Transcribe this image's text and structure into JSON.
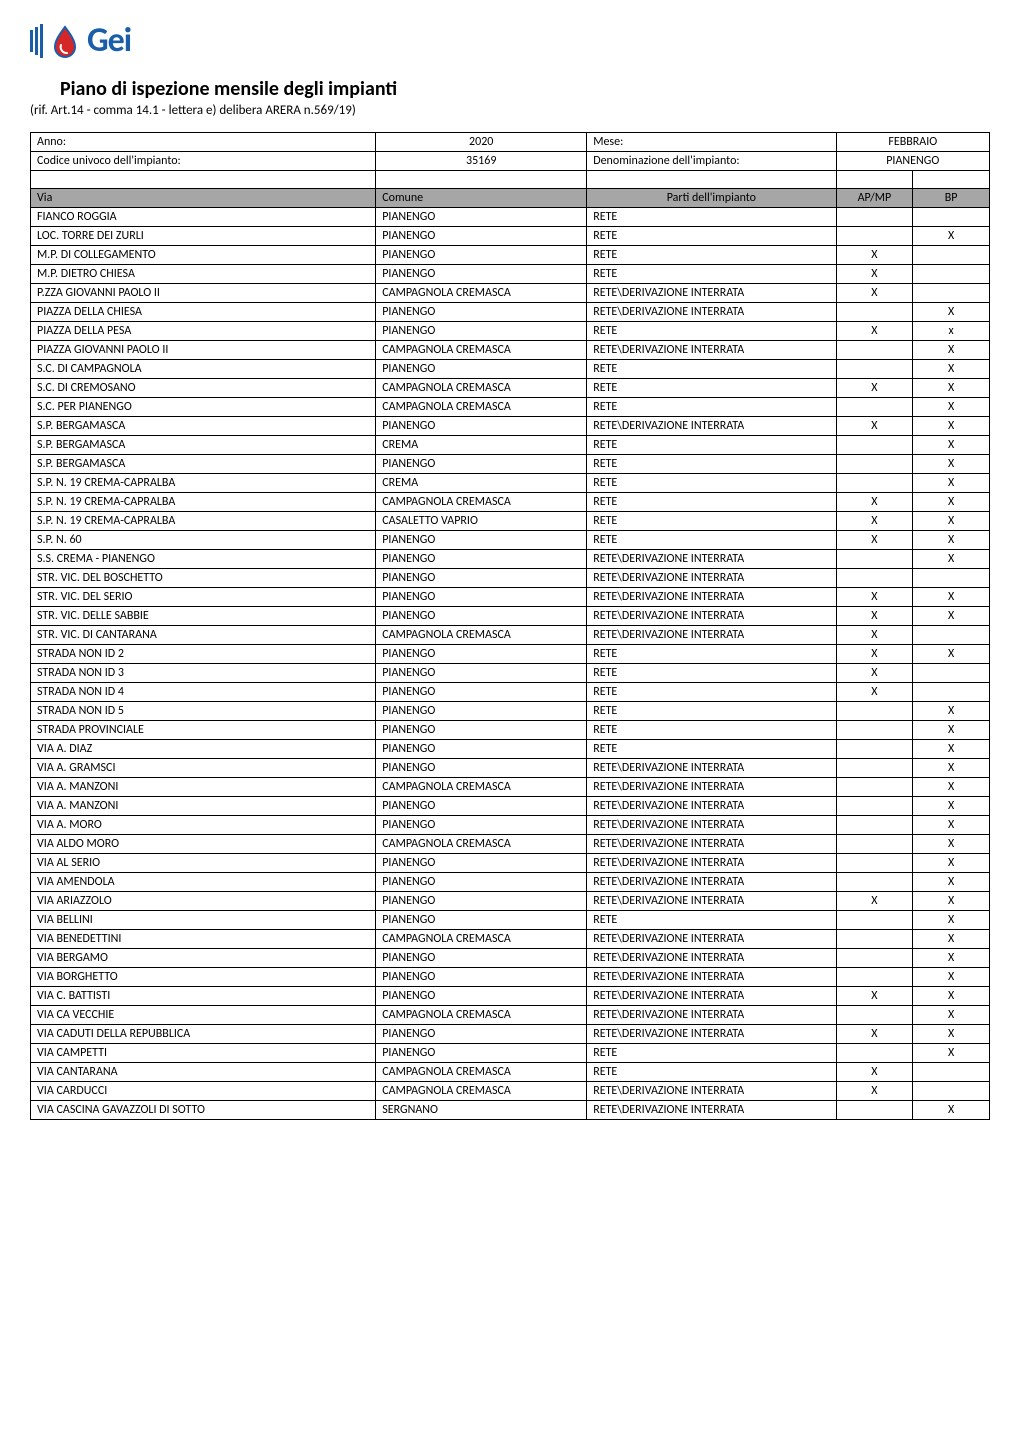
{
  "logo": {
    "text": "Gei",
    "bar_color": "#1a5da8",
    "drop_color": "#d62728"
  },
  "title": "Piano di ispezione mensile degli impianti",
  "subtitle": "(rif. Art.14 - comma 14.1 - lettera e) delibera ARERA n.569/19)",
  "meta": {
    "anno_label": "Anno:",
    "anno_val": "2020",
    "mese_label": "Mese:",
    "mese_val": "FEBBRAIO",
    "codice_label": "Codice univoco dell'impianto:",
    "codice_val": "35169",
    "denom_label": "Denominazione dell'impianto:",
    "denom_val": "PIANENGO"
  },
  "headers": {
    "via": "Via",
    "comune": "Comune",
    "parti": "Parti dell'impianto",
    "apmp": "AP/MP",
    "bp": "BP"
  },
  "rows": [
    {
      "via": "FIANCO ROGGIA",
      "comune": "PIANENGO",
      "parti": "RETE",
      "ap": "",
      "bp": ""
    },
    {
      "via": "LOC. TORRE DEI ZURLI",
      "comune": "PIANENGO",
      "parti": "RETE",
      "ap": "",
      "bp": "X"
    },
    {
      "via": "M.P. DI COLLEGAMENTO",
      "comune": "PIANENGO",
      "parti": "RETE",
      "ap": "X",
      "bp": ""
    },
    {
      "via": "M.P. DIETRO CHIESA",
      "comune": "PIANENGO",
      "parti": "RETE",
      "ap": "X",
      "bp": ""
    },
    {
      "via": "P.ZZA GIOVANNI PAOLO II",
      "comune": "CAMPAGNOLA CREMASCA",
      "parti": "RETE\\DERIVAZIONE INTERRATA",
      "ap": "X",
      "bp": ""
    },
    {
      "via": "PIAZZA DELLA CHIESA",
      "comune": "PIANENGO",
      "parti": "RETE\\DERIVAZIONE INTERRATA",
      "ap": "",
      "bp": "X"
    },
    {
      "via": "PIAZZA DELLA PESA",
      "comune": "PIANENGO",
      "parti": "RETE",
      "ap": "X",
      "bp": "x"
    },
    {
      "via": "PIAZZA GIOVANNI PAOLO II",
      "comune": "CAMPAGNOLA CREMASCA",
      "parti": "RETE\\DERIVAZIONE INTERRATA",
      "ap": "",
      "bp": "X"
    },
    {
      "via": "S.C. DI CAMPAGNOLA",
      "comune": "PIANENGO",
      "parti": "RETE",
      "ap": "",
      "bp": "X"
    },
    {
      "via": "S.C. DI CREMOSANO",
      "comune": "CAMPAGNOLA CREMASCA",
      "parti": "RETE",
      "ap": "X",
      "bp": "X"
    },
    {
      "via": "S.C. PER PIANENGO",
      "comune": "CAMPAGNOLA CREMASCA",
      "parti": "RETE",
      "ap": "",
      "bp": "X"
    },
    {
      "via": "S.P. BERGAMASCA",
      "comune": "PIANENGO",
      "parti": "RETE\\DERIVAZIONE INTERRATA",
      "ap": "X",
      "bp": "X"
    },
    {
      "via": "S.P. BERGAMASCA",
      "comune": "CREMA",
      "parti": "RETE",
      "ap": "",
      "bp": "X"
    },
    {
      "via": "S.P. BERGAMASCA",
      "comune": "PIANENGO",
      "parti": "RETE",
      "ap": "",
      "bp": "X"
    },
    {
      "via": "S.P. N. 19 CREMA-CAPRALBA",
      "comune": "CREMA",
      "parti": "RETE",
      "ap": "",
      "bp": "X"
    },
    {
      "via": "S.P. N. 19 CREMA-CAPRALBA",
      "comune": "CAMPAGNOLA CREMASCA",
      "parti": "RETE",
      "ap": "X",
      "bp": "X"
    },
    {
      "via": "S.P. N. 19 CREMA-CAPRALBA",
      "comune": "CASALETTO VAPRIO",
      "parti": "RETE",
      "ap": "X",
      "bp": "X"
    },
    {
      "via": "S.P. N. 60",
      "comune": "PIANENGO",
      "parti": "RETE",
      "ap": "X",
      "bp": "X"
    },
    {
      "via": "S.S. CREMA - PIANENGO",
      "comune": "PIANENGO",
      "parti": "RETE\\DERIVAZIONE INTERRATA",
      "ap": "",
      "bp": "X"
    },
    {
      "via": "STR. VIC. DEL BOSCHETTO",
      "comune": "PIANENGO",
      "parti": "RETE\\DERIVAZIONE INTERRATA",
      "ap": "",
      "bp": ""
    },
    {
      "via": "STR. VIC. DEL SERIO",
      "comune": "PIANENGO",
      "parti": "RETE\\DERIVAZIONE INTERRATA",
      "ap": "X",
      "bp": "X"
    },
    {
      "via": "STR. VIC. DELLE SABBIE",
      "comune": "PIANENGO",
      "parti": "RETE\\DERIVAZIONE INTERRATA",
      "ap": "X",
      "bp": "X"
    },
    {
      "via": "STR. VIC. DI CANTARANA",
      "comune": "CAMPAGNOLA CREMASCA",
      "parti": "RETE\\DERIVAZIONE INTERRATA",
      "ap": "X",
      "bp": ""
    },
    {
      "via": "STRADA NON ID 2",
      "comune": "PIANENGO",
      "parti": "RETE",
      "ap": "X",
      "bp": "X"
    },
    {
      "via": "STRADA NON ID 3",
      "comune": "PIANENGO",
      "parti": "RETE",
      "ap": "X",
      "bp": ""
    },
    {
      "via": "STRADA NON ID 4",
      "comune": "PIANENGO",
      "parti": "RETE",
      "ap": "X",
      "bp": ""
    },
    {
      "via": "STRADA NON ID 5",
      "comune": "PIANENGO",
      "parti": "RETE",
      "ap": "",
      "bp": "X"
    },
    {
      "via": "STRADA PROVINCIALE",
      "comune": "PIANENGO",
      "parti": "RETE",
      "ap": "",
      "bp": "X"
    },
    {
      "via": "VIA A. DIAZ",
      "comune": "PIANENGO",
      "parti": "RETE",
      "ap": "",
      "bp": "X"
    },
    {
      "via": "VIA A. GRAMSCI",
      "comune": "PIANENGO",
      "parti": "RETE\\DERIVAZIONE INTERRATA",
      "ap": "",
      "bp": "X"
    },
    {
      "via": "VIA A. MANZONI",
      "comune": "CAMPAGNOLA CREMASCA",
      "parti": "RETE\\DERIVAZIONE INTERRATA",
      "ap": "",
      "bp": "X"
    },
    {
      "via": "VIA A. MANZONI",
      "comune": "PIANENGO",
      "parti": "RETE\\DERIVAZIONE INTERRATA",
      "ap": "",
      "bp": "X"
    },
    {
      "via": "VIA A. MORO",
      "comune": "PIANENGO",
      "parti": "RETE\\DERIVAZIONE INTERRATA",
      "ap": "",
      "bp": "X"
    },
    {
      "via": "VIA ALDO MORO",
      "comune": "CAMPAGNOLA CREMASCA",
      "parti": "RETE\\DERIVAZIONE INTERRATA",
      "ap": "",
      "bp": "X"
    },
    {
      "via": "VIA AL SERIO",
      "comune": "PIANENGO",
      "parti": "RETE\\DERIVAZIONE INTERRATA",
      "ap": "",
      "bp": "X"
    },
    {
      "via": "VIA AMENDOLA",
      "comune": "PIANENGO",
      "parti": "RETE\\DERIVAZIONE INTERRATA",
      "ap": "",
      "bp": "X"
    },
    {
      "via": "VIA ARIAZZOLO",
      "comune": "PIANENGO",
      "parti": "RETE\\DERIVAZIONE INTERRATA",
      "ap": "X",
      "bp": "X"
    },
    {
      "via": "VIA BELLINI",
      "comune": "PIANENGO",
      "parti": "RETE",
      "ap": "",
      "bp": "X"
    },
    {
      "via": "VIA BENEDETTINI",
      "comune": "CAMPAGNOLA CREMASCA",
      "parti": "RETE\\DERIVAZIONE INTERRATA",
      "ap": "",
      "bp": "X"
    },
    {
      "via": "VIA BERGAMO",
      "comune": "PIANENGO",
      "parti": "RETE\\DERIVAZIONE INTERRATA",
      "ap": "",
      "bp": "X"
    },
    {
      "via": "VIA BORGHETTO",
      "comune": "PIANENGO",
      "parti": "RETE\\DERIVAZIONE INTERRATA",
      "ap": "",
      "bp": "X"
    },
    {
      "via": "VIA C. BATTISTI",
      "comune": "PIANENGO",
      "parti": "RETE\\DERIVAZIONE INTERRATA",
      "ap": "X",
      "bp": "X"
    },
    {
      "via": "VIA CA VECCHIE",
      "comune": "CAMPAGNOLA CREMASCA",
      "parti": "RETE\\DERIVAZIONE INTERRATA",
      "ap": "",
      "bp": "X"
    },
    {
      "via": "VIA CADUTI DELLA REPUBBLICA",
      "comune": "PIANENGO",
      "parti": "RETE\\DERIVAZIONE INTERRATA",
      "ap": "X",
      "bp": "X"
    },
    {
      "via": "VIA CAMPETTI",
      "comune": "PIANENGO",
      "parti": "RETE",
      "ap": "",
      "bp": "X"
    },
    {
      "via": "VIA CANTARANA",
      "comune": "CAMPAGNOLA CREMASCA",
      "parti": "RETE",
      "ap": "X",
      "bp": ""
    },
    {
      "via": "VIA CARDUCCI",
      "comune": "CAMPAGNOLA CREMASCA",
      "parti": "RETE\\DERIVAZIONE INTERRATA",
      "ap": "X",
      "bp": ""
    },
    {
      "via": "VIA CASCINA GAVAZZOLI DI SOTTO",
      "comune": "SERGNANO",
      "parti": "RETE\\DERIVAZIONE INTERRATA",
      "ap": "",
      "bp": "X"
    }
  ],
  "styles": {
    "text_color": "#000000",
    "border_color": "#000000",
    "header_bg": "#a6a6a6",
    "font_family": "Calibri",
    "body_fontsize": 12,
    "title_fontsize": 20,
    "col_widths_pct": [
      36,
      22,
      26,
      8,
      8
    ]
  }
}
